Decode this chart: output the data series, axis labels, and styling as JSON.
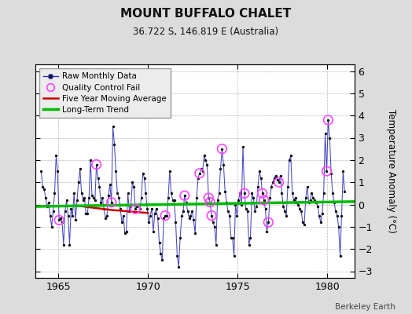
{
  "title": "MOUNT BUFFALO CHALET",
  "subtitle": "36.722 S, 146.819 E (Australia)",
  "ylabel": "Temperature Anomaly (°C)",
  "credit": "Berkeley Earth",
  "ylim": [
    -3.3,
    6.3
  ],
  "xlim": [
    1963.7,
    1981.5
  ],
  "yticks": [
    -3,
    -2,
    -1,
    0,
    1,
    2,
    3,
    4,
    5,
    6
  ],
  "xticks": [
    1965,
    1970,
    1975,
    1980
  ],
  "bg_color": "#dcdcdc",
  "plot_bg_color": "#ffffff",
  "raw_color": "#3333bb",
  "marker_color": "#111111",
  "qc_color": "#ff44ff",
  "ma_color": "#cc0000",
  "trend_color": "#00bb00",
  "raw_monthly": [
    [
      1964.042,
      1.5
    ],
    [
      1964.125,
      0.8
    ],
    [
      1964.208,
      0.7
    ],
    [
      1964.292,
      0.3
    ],
    [
      1964.375,
      -0.1
    ],
    [
      1964.458,
      0.1
    ],
    [
      1964.542,
      -0.5
    ],
    [
      1964.625,
      -1.0
    ],
    [
      1964.708,
      -0.3
    ],
    [
      1964.792,
      0.5
    ],
    [
      1964.875,
      2.2
    ],
    [
      1964.958,
      1.5
    ],
    [
      1965.042,
      -0.7
    ],
    [
      1965.125,
      -0.6
    ],
    [
      1965.208,
      -0.8
    ],
    [
      1965.292,
      -1.8
    ],
    [
      1965.375,
      -0.3
    ],
    [
      1965.458,
      0.2
    ],
    [
      1965.542,
      -0.5
    ],
    [
      1965.625,
      -1.8
    ],
    [
      1965.708,
      -0.2
    ],
    [
      1965.792,
      -0.5
    ],
    [
      1965.875,
      0.5
    ],
    [
      1965.958,
      -0.7
    ],
    [
      1966.042,
      0.2
    ],
    [
      1966.125,
      1.0
    ],
    [
      1966.208,
      1.6
    ],
    [
      1966.292,
      0.5
    ],
    [
      1966.375,
      0.2
    ],
    [
      1966.458,
      0.3
    ],
    [
      1966.542,
      -0.4
    ],
    [
      1966.625,
      -0.4
    ],
    [
      1966.708,
      0.3
    ],
    [
      1966.792,
      2.0
    ],
    [
      1966.875,
      0.4
    ],
    [
      1966.958,
      0.3
    ],
    [
      1967.042,
      0.2
    ],
    [
      1967.125,
      1.8
    ],
    [
      1967.208,
      1.2
    ],
    [
      1967.292,
      0.8
    ],
    [
      1967.375,
      0.1
    ],
    [
      1967.458,
      0.3
    ],
    [
      1967.542,
      -0.2
    ],
    [
      1967.625,
      -0.6
    ],
    [
      1967.708,
      -0.5
    ],
    [
      1967.792,
      0.4
    ],
    [
      1967.875,
      0.9
    ],
    [
      1967.958,
      0.1
    ],
    [
      1968.042,
      3.5
    ],
    [
      1968.125,
      2.7
    ],
    [
      1968.208,
      1.5
    ],
    [
      1968.292,
      0.5
    ],
    [
      1968.375,
      0.3
    ],
    [
      1968.458,
      -0.2
    ],
    [
      1968.542,
      -0.8
    ],
    [
      1968.625,
      -0.5
    ],
    [
      1968.708,
      -1.3
    ],
    [
      1968.792,
      -1.2
    ],
    [
      1968.875,
      0.5
    ],
    [
      1968.958,
      -0.3
    ],
    [
      1969.042,
      -0.1
    ],
    [
      1969.125,
      1.0
    ],
    [
      1969.208,
      0.8
    ],
    [
      1969.292,
      -0.2
    ],
    [
      1969.375,
      -0.1
    ],
    [
      1969.458,
      0.0
    ],
    [
      1969.542,
      -0.2
    ],
    [
      1969.625,
      0.3
    ],
    [
      1969.708,
      1.4
    ],
    [
      1969.792,
      1.2
    ],
    [
      1969.875,
      0.5
    ],
    [
      1969.958,
      -0.2
    ],
    [
      1970.042,
      -0.8
    ],
    [
      1970.125,
      -0.5
    ],
    [
      1970.208,
      -0.2
    ],
    [
      1970.292,
      -1.2
    ],
    [
      1970.375,
      -0.4
    ],
    [
      1970.458,
      -0.2
    ],
    [
      1970.542,
      -0.6
    ],
    [
      1970.625,
      -1.7
    ],
    [
      1970.708,
      -2.2
    ],
    [
      1970.792,
      -2.5
    ],
    [
      1970.875,
      -0.6
    ],
    [
      1970.958,
      -0.5
    ],
    [
      1971.042,
      -0.5
    ],
    [
      1971.125,
      0.3
    ],
    [
      1971.208,
      1.5
    ],
    [
      1971.292,
      0.5
    ],
    [
      1971.375,
      0.2
    ],
    [
      1971.458,
      0.2
    ],
    [
      1971.542,
      -0.8
    ],
    [
      1971.625,
      -2.3
    ],
    [
      1971.708,
      -2.8
    ],
    [
      1971.792,
      -1.5
    ],
    [
      1971.875,
      -0.5
    ],
    [
      1971.958,
      -0.3
    ],
    [
      1972.042,
      0.4
    ],
    [
      1972.125,
      0.1
    ],
    [
      1972.208,
      -0.3
    ],
    [
      1972.292,
      -0.6
    ],
    [
      1972.375,
      -0.5
    ],
    [
      1972.458,
      -0.3
    ],
    [
      1972.542,
      -0.7
    ],
    [
      1972.625,
      -1.3
    ],
    [
      1972.708,
      0.3
    ],
    [
      1972.792,
      1.2
    ],
    [
      1972.875,
      1.4
    ],
    [
      1972.958,
      1.6
    ],
    [
      1973.042,
      1.5
    ],
    [
      1973.125,
      2.2
    ],
    [
      1973.208,
      2.0
    ],
    [
      1973.292,
      1.8
    ],
    [
      1973.375,
      0.3
    ],
    [
      1973.458,
      0.1
    ],
    [
      1973.542,
      -0.5
    ],
    [
      1973.625,
      -0.8
    ],
    [
      1973.708,
      -1.0
    ],
    [
      1973.792,
      -1.8
    ],
    [
      1973.875,
      0.2
    ],
    [
      1973.958,
      0.5
    ],
    [
      1974.042,
      1.6
    ],
    [
      1974.125,
      2.5
    ],
    [
      1974.208,
      1.8
    ],
    [
      1974.292,
      0.6
    ],
    [
      1974.375,
      0.1
    ],
    [
      1974.458,
      -0.3
    ],
    [
      1974.542,
      -0.5
    ],
    [
      1974.625,
      -1.5
    ],
    [
      1974.708,
      -1.5
    ],
    [
      1974.792,
      -2.3
    ],
    [
      1974.875,
      0.0
    ],
    [
      1974.958,
      -0.5
    ],
    [
      1975.042,
      0.2
    ],
    [
      1975.125,
      0.5
    ],
    [
      1975.208,
      0.0
    ],
    [
      1975.292,
      2.6
    ],
    [
      1975.375,
      0.5
    ],
    [
      1975.458,
      -0.2
    ],
    [
      1975.542,
      -0.3
    ],
    [
      1975.625,
      -1.8
    ],
    [
      1975.708,
      -1.5
    ],
    [
      1975.792,
      0.5
    ],
    [
      1975.875,
      0.3
    ],
    [
      1975.958,
      -0.3
    ],
    [
      1976.042,
      -0.1
    ],
    [
      1976.125,
      0.8
    ],
    [
      1976.208,
      1.5
    ],
    [
      1976.292,
      1.2
    ],
    [
      1976.375,
      0.5
    ],
    [
      1976.458,
      0.2
    ],
    [
      1976.542,
      -0.2
    ],
    [
      1976.625,
      -1.2
    ],
    [
      1976.708,
      -0.8
    ],
    [
      1976.792,
      0.3
    ],
    [
      1976.875,
      0.8
    ],
    [
      1976.958,
      1.0
    ],
    [
      1977.042,
      1.2
    ],
    [
      1977.125,
      1.3
    ],
    [
      1977.208,
      1.1
    ],
    [
      1977.292,
      1.0
    ],
    [
      1977.375,
      1.3
    ],
    [
      1977.458,
      0.5
    ],
    [
      1977.542,
      -0.1
    ],
    [
      1977.625,
      -0.3
    ],
    [
      1977.708,
      -0.5
    ],
    [
      1977.792,
      0.8
    ],
    [
      1977.875,
      2.0
    ],
    [
      1977.958,
      2.2
    ],
    [
      1978.042,
      0.5
    ],
    [
      1978.125,
      0.2
    ],
    [
      1978.208,
      0.3
    ],
    [
      1978.292,
      0.1
    ],
    [
      1978.375,
      0.0
    ],
    [
      1978.458,
      -0.2
    ],
    [
      1978.542,
      -0.3
    ],
    [
      1978.625,
      -0.8
    ],
    [
      1978.708,
      -0.9
    ],
    [
      1978.792,
      0.3
    ],
    [
      1978.875,
      0.8
    ],
    [
      1978.958,
      0.1
    ],
    [
      1979.042,
      0.2
    ],
    [
      1979.125,
      0.5
    ],
    [
      1979.208,
      0.3
    ],
    [
      1979.292,
      0.2
    ],
    [
      1979.375,
      0.1
    ],
    [
      1979.458,
      -0.1
    ],
    [
      1979.542,
      -0.5
    ],
    [
      1979.625,
      -0.8
    ],
    [
      1979.708,
      -0.4
    ],
    [
      1979.792,
      0.5
    ],
    [
      1979.875,
      3.2
    ],
    [
      1979.958,
      1.5
    ],
    [
      1980.042,
      3.8
    ],
    [
      1980.125,
      3.0
    ],
    [
      1980.208,
      1.4
    ],
    [
      1980.292,
      0.5
    ],
    [
      1980.375,
      0.1
    ],
    [
      1980.458,
      -0.3
    ],
    [
      1980.542,
      -0.5
    ],
    [
      1980.625,
      -1.0
    ],
    [
      1980.708,
      -2.3
    ],
    [
      1980.792,
      -0.5
    ],
    [
      1980.875,
      1.5
    ],
    [
      1980.958,
      0.6
    ]
  ],
  "qc_fail": [
    [
      1965.042,
      -0.7
    ],
    [
      1967.125,
      1.8
    ],
    [
      1967.958,
      0.1
    ],
    [
      1969.292,
      -0.2
    ],
    [
      1970.958,
      -0.5
    ],
    [
      1972.042,
      0.4
    ],
    [
      1972.875,
      1.4
    ],
    [
      1973.375,
      0.3
    ],
    [
      1973.458,
      0.1
    ],
    [
      1973.542,
      -0.5
    ],
    [
      1974.125,
      2.5
    ],
    [
      1975.375,
      0.5
    ],
    [
      1976.375,
      0.5
    ],
    [
      1976.458,
      0.2
    ],
    [
      1976.708,
      -0.8
    ],
    [
      1977.292,
      1.0
    ],
    [
      1979.958,
      1.5
    ],
    [
      1980.042,
      3.8
    ]
  ],
  "moving_avg": [
    [
      1966.0,
      -0.05
    ],
    [
      1966.5,
      -0.1
    ],
    [
      1967.0,
      -0.15
    ],
    [
      1967.5,
      -0.2
    ],
    [
      1968.0,
      -0.25
    ],
    [
      1968.5,
      -0.28
    ],
    [
      1969.0,
      -0.32
    ],
    [
      1969.5,
      -0.35
    ],
    [
      1970.0,
      -0.38
    ]
  ],
  "trend_x": [
    1963.7,
    1981.5
  ],
  "trend_y": [
    -0.09,
    0.13
  ]
}
